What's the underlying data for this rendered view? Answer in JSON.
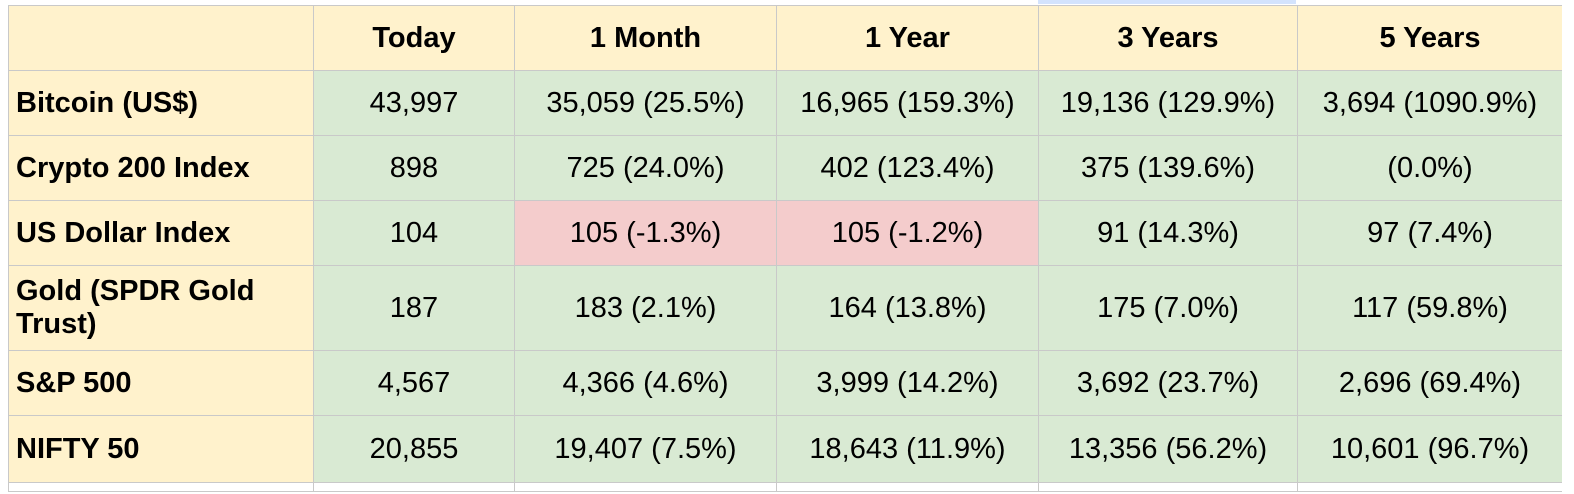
{
  "table": {
    "columns": [
      "",
      "Today",
      "1 Month",
      "1 Year",
      "3 Years",
      "5 Years"
    ],
    "rows": [
      {
        "label": "Bitcoin (US$)",
        "cells": [
          "43,997",
          "35,059 (25.5%)",
          "16,965 (159.3%)",
          "19,136 (129.9%)",
          "3,694 (1090.9%)"
        ]
      },
      {
        "label": "Crypto 200 Index",
        "cells": [
          "898",
          "725 (24.0%)",
          "402 (123.4%)",
          "375 (139.6%)",
          "(0.0%)"
        ]
      },
      {
        "label": "US Dollar Index",
        "cells": [
          "104",
          "105 (-1.3%)",
          "105 (-1.2%)",
          "91 (14.3%)",
          "97 (7.4%)"
        ]
      },
      {
        "label": "Gold (SPDR Gold Trust)",
        "cells": [
          "187",
          "183 (2.1%)",
          "164 (13.8%)",
          "175 (7.0%)",
          "117 (59.8%)"
        ]
      },
      {
        "label": "S&P 500",
        "cells": [
          "4,567",
          "4,366 (4.6%)",
          "3,999 (14.2%)",
          "3,692 (23.7%)",
          "2,696 (69.4%)"
        ]
      },
      {
        "label": "NIFTY 50",
        "cells": [
          "20,855",
          "19,407 (7.5%)",
          "18,643 (11.9%)",
          "13,356 (56.2%)",
          "10,601 (96.7%)"
        ]
      }
    ]
  },
  "colors": {
    "header_fill": "#fff2cc",
    "positive_fill": "#d9ead3",
    "negative_fill": "#f4cccc",
    "gridline": "#c9c9c9",
    "selection": "#d3e3fd"
  }
}
